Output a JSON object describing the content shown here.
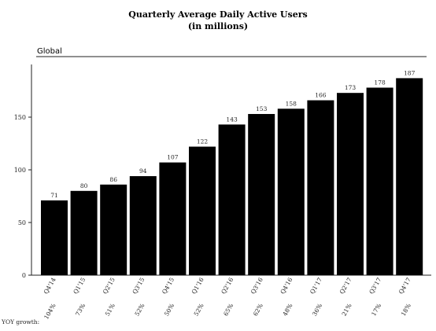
{
  "chart_data": {
    "type": "bar",
    "title": "Quarterly Average Daily Active Users",
    "subtitle": "(in millions)",
    "panel_label": "Global",
    "categories": [
      "Q4'14",
      "Q1'15",
      "Q2'15",
      "Q3'15",
      "Q4'15",
      "Q1'16",
      "Q2'16",
      "Q3'16",
      "Q4'16",
      "Q1'17",
      "Q2'17",
      "Q3'17",
      "Q4'17"
    ],
    "values": [
      71,
      80,
      86,
      94,
      107,
      122,
      143,
      153,
      158,
      166,
      173,
      178,
      187
    ],
    "value_labels": [
      "71",
      "80",
      "86",
      "94",
      "107",
      "122",
      "143",
      "153",
      "158",
      "166",
      "173",
      "178",
      "187"
    ],
    "yoy_label": "YOY growth:",
    "yoy_growth": [
      "104%",
      "73%",
      "51%",
      "52%",
      "50%",
      "52%",
      "65%",
      "62%",
      "48%",
      "36%",
      "21%",
      "17%",
      "18%"
    ],
    "yticks": [
      0,
      50,
      100,
      150
    ],
    "ytick_labels": [
      "0",
      "50",
      "100",
      "150"
    ],
    "ylim": [
      0,
      200
    ],
    "xlabel": "",
    "ylabel": "",
    "grid": false,
    "legend": "none",
    "bar_color": "#000000",
    "category_label_rotation_deg": -60
  }
}
